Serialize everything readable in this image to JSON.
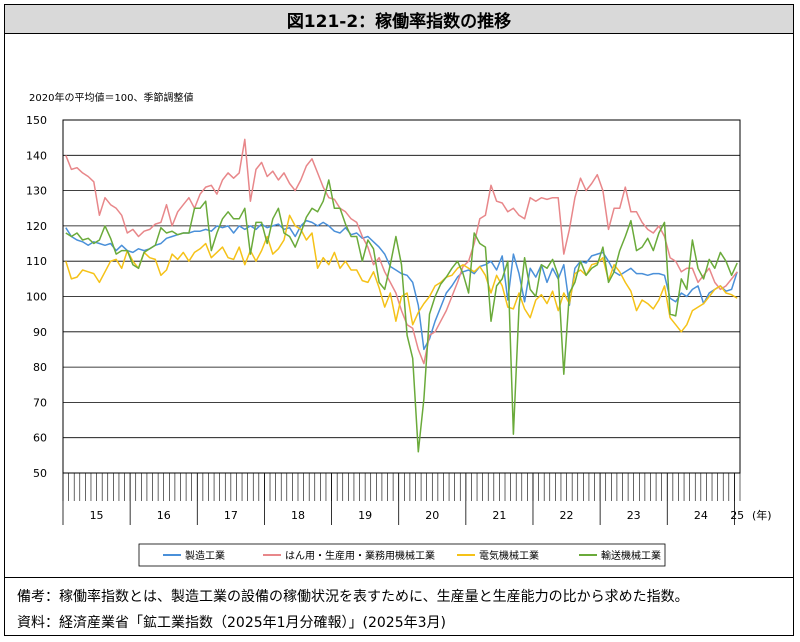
{
  "title": "図121-2：稼働率指数の推移",
  "note": "2020年の平均値＝100、季節調整値",
  "footer": {
    "remarks": "備考：稼働率指数とは、製造工業の設備の稼働状況を表すために、生産量と生産能力の比から求めた指数。",
    "source": "資料：経済産業省「鉱工業指数（2025年1月分確報）」(2025年3月)"
  },
  "chart_data": {
    "type": "line",
    "title": "",
    "xlabel": "(年)",
    "ylabel": "",
    "ylim": [
      50,
      150
    ],
    "yticks": [
      50,
      60,
      70,
      80,
      90,
      100,
      110,
      120,
      130,
      140,
      150
    ],
    "year_labels": [
      "15",
      "16",
      "17",
      "18",
      "19",
      "20",
      "21",
      "22",
      "23",
      "24",
      "25"
    ],
    "x_start": "2015-01",
    "x_end": "2025-01",
    "grid": true,
    "legend_position": "bottom",
    "series": [
      {
        "name": "製造工業",
        "color": "#4a90d9",
        "values": [
          119.5,
          117.0,
          116.0,
          115.5,
          114.5,
          115.5,
          115.0,
          114.5,
          115.0,
          113.0,
          114.5,
          113.0,
          112.5,
          113.5,
          113.0,
          113.5,
          114.5,
          115.0,
          116.5,
          117.0,
          117.5,
          118.0,
          118.0,
          118.5,
          118.5,
          119.0,
          118.5,
          120.0,
          119.5,
          120.0,
          118.0,
          120.0,
          119.0,
          120.0,
          119.0,
          120.5,
          119.5,
          120.0,
          120.5,
          119.0,
          119.5,
          117.0,
          120.0,
          121.5,
          121.0,
          120.0,
          121.0,
          120.0,
          118.5,
          118.0,
          119.5,
          117.5,
          118.0,
          116.5,
          117.0,
          115.5,
          114.0,
          112.0,
          108.5,
          107.5,
          106.5,
          106.0,
          104.0,
          97.5,
          85.0,
          88.0,
          93.0,
          97.0,
          101.0,
          103.0,
          105.5,
          107.0,
          107.5,
          106.5,
          108.5,
          109.0,
          110.0,
          107.5,
          111.5,
          99.0,
          112.0,
          106.5,
          98.5,
          108.0,
          105.5,
          109.0,
          104.0,
          108.0,
          105.0,
          109.0,
          97.5,
          108.0,
          110.0,
          109.5,
          111.5,
          112.0,
          112.5,
          110.0,
          107.0,
          106.0,
          107.0,
          108.0,
          106.5,
          106.5,
          106.0,
          106.5,
          106.5,
          106.0,
          99.5,
          98.5,
          101.0,
          100.0,
          102.0,
          103.0,
          98.0,
          101.0,
          102.0,
          103.0,
          101.5,
          102.0,
          107.0
        ]
      },
      {
        "name": "はん用・生産用・業務用機械工業",
        "color": "#e8878a",
        "values": [
          140.0,
          136.0,
          136.5,
          135.0,
          134.0,
          132.5,
          123.0,
          128.0,
          126.0,
          125.0,
          123.0,
          118.0,
          119.0,
          117.0,
          118.5,
          119.0,
          120.5,
          121.0,
          126.0,
          120.0,
          124.0,
          126.0,
          128.0,
          125.0,
          129.0,
          131.0,
          131.5,
          129.0,
          133.0,
          135.0,
          133.5,
          135.0,
          144.5,
          127.0,
          136.0,
          138.0,
          134.0,
          135.5,
          133.0,
          135.0,
          132.0,
          130.0,
          133.0,
          137.0,
          139.0,
          135.0,
          131.0,
          128.0,
          127.5,
          125.0,
          124.0,
          122.0,
          121.0,
          117.0,
          114.0,
          109.0,
          111.0,
          107.0,
          104.0,
          101.0,
          96.0,
          92.0,
          91.0,
          85.0,
          81.0,
          89.0,
          90.0,
          93.0,
          96.0,
          100.0,
          104.0,
          108.5,
          110.0,
          115.0,
          122.0,
          123.0,
          131.5,
          127.0,
          126.5,
          124.0,
          125.0,
          123.0,
          122.0,
          128.0,
          127.0,
          128.0,
          127.5,
          128.0,
          128.0,
          112.0,
          119.0,
          128.0,
          133.5,
          130.0,
          132.0,
          134.5,
          130.0,
          119.0,
          125.0,
          125.0,
          131.0,
          124.0,
          124.0,
          121.0,
          119.0,
          118.0,
          120.0,
          117.0,
          111.0,
          110.0,
          107.0,
          108.0,
          108.0,
          104.0,
          106.0,
          108.0,
          104.0,
          102.0,
          103.0,
          105.0,
          107.0
        ]
      },
      {
        "name": "電気機械工業",
        "color": "#f5c218",
        "values": [
          110.0,
          105.0,
          105.5,
          107.5,
          107.0,
          106.5,
          104.0,
          107.0,
          110.0,
          110.5,
          108.0,
          113.0,
          110.0,
          108.0,
          112.5,
          111.0,
          110.5,
          106.0,
          107.5,
          112.0,
          110.5,
          112.5,
          110.0,
          112.5,
          113.5,
          115.0,
          111.0,
          112.5,
          114.0,
          111.0,
          110.5,
          114.0,
          109.0,
          113.0,
          110.0,
          113.0,
          117.0,
          112.0,
          113.5,
          116.0,
          123.0,
          120.0,
          119.0,
          116.0,
          118.0,
          108.0,
          111.0,
          109.0,
          112.5,
          108.0,
          110.0,
          107.5,
          107.5,
          104.5,
          104.0,
          107.0,
          102.5,
          97.0,
          101.0,
          93.0,
          100.0,
          101.0,
          92.0,
          95.5,
          98.0,
          100.0,
          103.0,
          104.0,
          105.5,
          106.0,
          108.0,
          109.0,
          108.0,
          107.0,
          108.5,
          106.0,
          101.0,
          106.0,
          103.0,
          97.0,
          96.5,
          101.0,
          96.5,
          94.0,
          99.0,
          100.5,
          98.0,
          101.5,
          96.0,
          101.0,
          98.0,
          106.5,
          107.5,
          106.0,
          109.0,
          109.5,
          111.0,
          104.5,
          109.0,
          107.0,
          104.0,
          101.5,
          96.0,
          99.0,
          98.0,
          96.5,
          99.0,
          103.0,
          94.0,
          92.0,
          90.0,
          92.0,
          96.0,
          97.0,
          98.0,
          100.0,
          102.0,
          103.0,
          101.0,
          100.5,
          99.5
        ]
      },
      {
        "name": "輸送機械工業",
        "color": "#6aaa3a",
        "values": [
          118.0,
          117.0,
          118.0,
          116.0,
          116.5,
          115.0,
          116.0,
          120.0,
          116.5,
          112.0,
          113.0,
          113.0,
          109.0,
          108.0,
          112.5,
          113.5,
          114.5,
          119.5,
          118.0,
          118.5,
          117.5,
          118.0,
          118.0,
          125.0,
          125.0,
          127.0,
          113.0,
          118.0,
          122.0,
          124.0,
          122.0,
          122.0,
          125.0,
          112.0,
          121.0,
          121.0,
          115.0,
          122.0,
          125.0,
          118.0,
          117.0,
          114.0,
          118.0,
          122.5,
          125.0,
          124.0,
          127.0,
          133.0,
          125.0,
          125.0,
          120.5,
          117.0,
          117.0,
          110.0,
          116.0,
          113.5,
          104.0,
          102.0,
          109.0,
          117.0,
          109.0,
          89.0,
          82.5,
          56.0,
          71.0,
          95.0,
          100.0,
          103.5,
          105.5,
          108.0,
          110.0,
          106.5,
          101.0,
          118.0,
          115.0,
          114.0,
          93.0,
          103.0,
          105.0,
          110.0,
          61.0,
          97.0,
          111.0,
          102.0,
          100.0,
          109.0,
          108.0,
          110.5,
          106.0,
          78.0,
          101.0,
          104.0,
          110.0,
          106.0,
          108.0,
          109.0,
          114.0,
          104.0,
          107.0,
          113.0,
          117.0,
          121.5,
          113.0,
          114.0,
          116.5,
          113.0,
          118.0,
          121.0,
          95.0,
          94.5,
          105.0,
          102.0,
          116.0,
          108.0,
          105.0,
          110.5,
          108.0,
          112.5,
          110.0,
          106.0,
          109.5
        ]
      }
    ]
  }
}
